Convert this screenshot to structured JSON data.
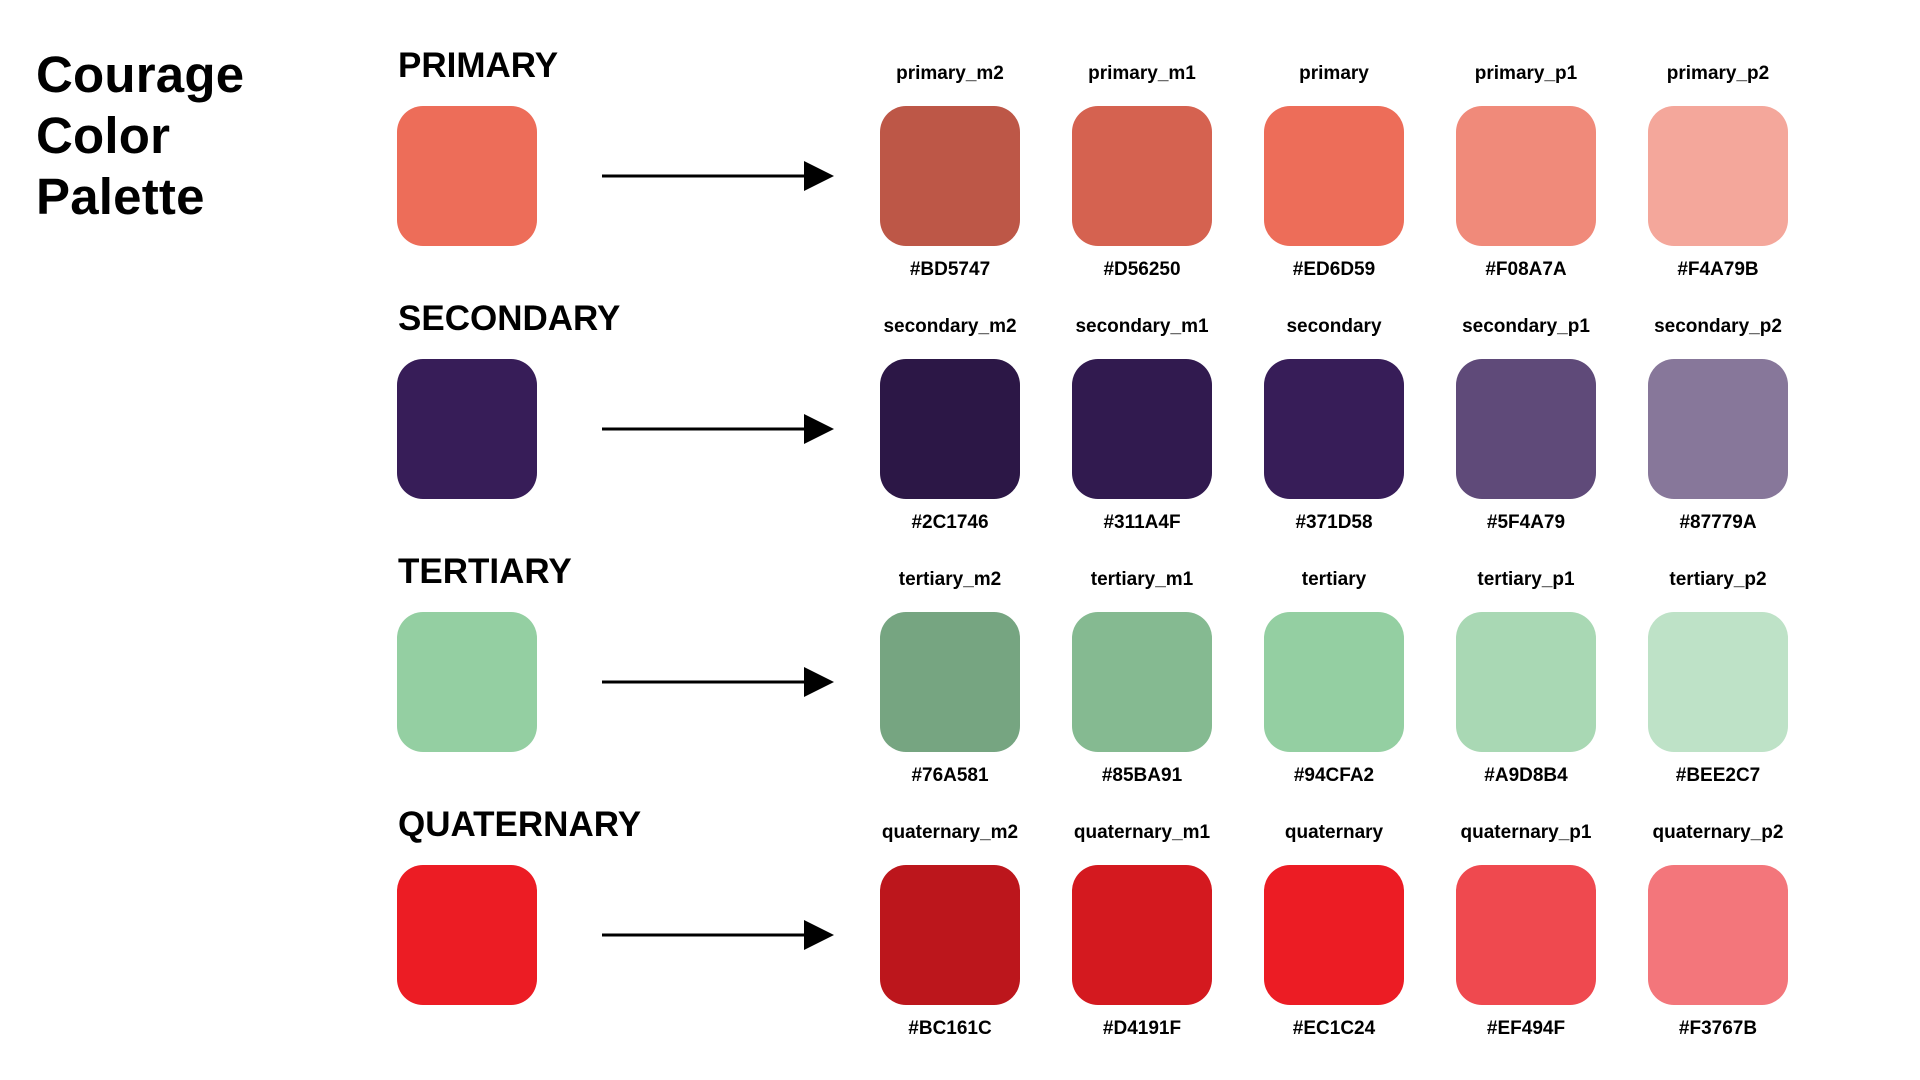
{
  "title": {
    "line1": "Courage",
    "line2": "Color",
    "line3": "Palette"
  },
  "rows": [
    {
      "title": "PRIMARY",
      "base_color": "#ED6D59",
      "variants": [
        {
          "name": "primary_m2",
          "hex": "#BD5747"
        },
        {
          "name": "primary_m1",
          "hex": "#D56250"
        },
        {
          "name": "primary",
          "hex": "#ED6D59"
        },
        {
          "name": "primary_p1",
          "hex": "#F08A7A"
        },
        {
          "name": "primary_p2",
          "hex": "#F4A79B"
        }
      ]
    },
    {
      "title": "SECONDARY",
      "base_color": "#371D58",
      "variants": [
        {
          "name": "secondary_m2",
          "hex": "#2C1746"
        },
        {
          "name": "secondary_m1",
          "hex": "#311A4F"
        },
        {
          "name": "secondary",
          "hex": "#371D58"
        },
        {
          "name": "secondary_p1",
          "hex": "#5F4A79"
        },
        {
          "name": "secondary_p2",
          "hex": "#87779A"
        }
      ]
    },
    {
      "title": "TERTIARY",
      "base_color": "#94CFA2",
      "variants": [
        {
          "name": "tertiary_m2",
          "hex": "#76A581"
        },
        {
          "name": "tertiary_m1",
          "hex": "#85BA91"
        },
        {
          "name": "tertiary",
          "hex": "#94CFA2"
        },
        {
          "name": "tertiary_p1",
          "hex": "#A9D8B4"
        },
        {
          "name": "tertiary_p2",
          "hex": "#BEE2C7"
        }
      ]
    },
    {
      "title": "QUATERNARY",
      "base_color": "#EC1C24",
      "variants": [
        {
          "name": "quaternary_m2",
          "hex": "#BC161C"
        },
        {
          "name": "quaternary_m1",
          "hex": "#D4191F"
        },
        {
          "name": "quaternary",
          "hex": "#EC1C24"
        },
        {
          "name": "quaternary_p1",
          "hex": "#EF494F"
        },
        {
          "name": "quaternary_p2",
          "hex": "#F3767B"
        }
      ]
    }
  ]
}
